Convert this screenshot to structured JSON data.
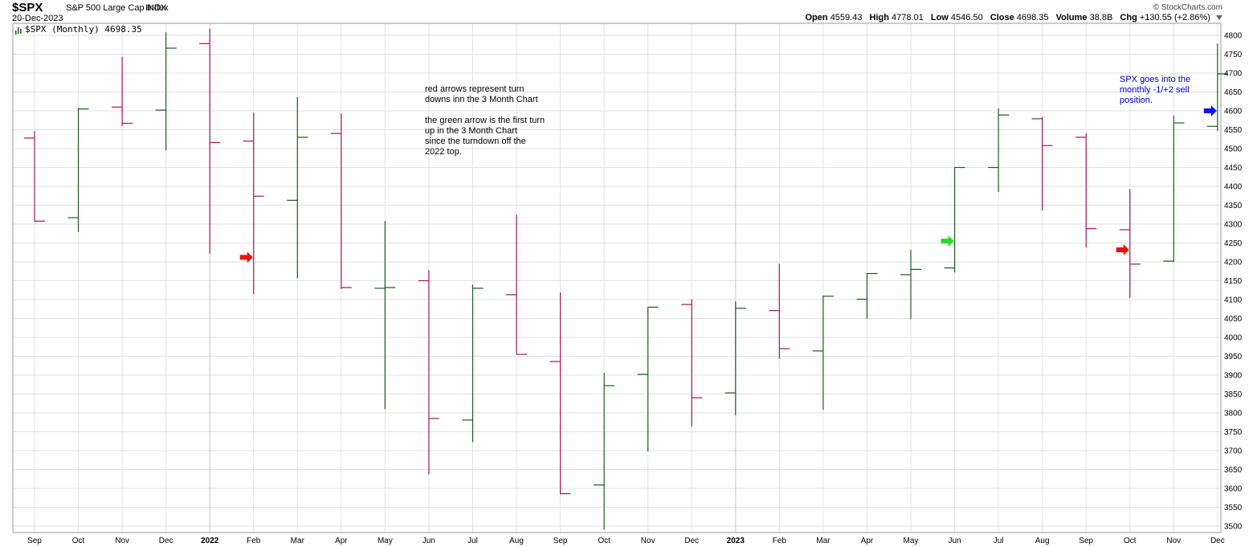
{
  "header": {
    "symbol": "$SPX",
    "name": "S&P 500 Large Cap Index",
    "exchange": "INDX",
    "date": "20-Dec-2023",
    "brand": "© StockCharts.com",
    "open_label": "Open",
    "open": "4559.43",
    "high_label": "High",
    "high": "4778.01",
    "low_label": "Low",
    "low": "4546.50",
    "close_label": "Close",
    "close": "4698.35",
    "volume_label": "Volume",
    "volume": "38.8B",
    "chg_label": "Chg",
    "chg": "+130.55 (+2.86%)"
  },
  "legend": "$SPX (Monthly) 4698.35",
  "annotations": {
    "red_green_note": "red arrows represent turn\ndowns inn the 3 Month Chart\n\nthe green arrow is the first turn\nup in the 3 Month Chart\nsince the turndown off the\n2022 top.",
    "blue_note": "SPX goes into the\nmonthly -1/+2 sell\nposition."
  },
  "colors": {
    "up": "#1a5e1a",
    "down": "#a3155a",
    "grid": "#e2e2e2",
    "red_arrow": "#ee1111",
    "green_arrow": "#22dd22",
    "blue_arrow": "#1111ee"
  },
  "chart_data": {
    "type": "ohlc",
    "title": "$SPX (Monthly) 4698.35",
    "ylim": [
      3480,
      4830
    ],
    "yticks": [
      3500,
      3550,
      3600,
      3650,
      3700,
      3750,
      3800,
      3850,
      3900,
      3950,
      4000,
      4050,
      4100,
      4150,
      4200,
      4250,
      4300,
      4350,
      4400,
      4450,
      4500,
      4550,
      4600,
      4650,
      4700,
      4750,
      4800
    ],
    "x_labels": [
      "Sep",
      "Oct",
      "Nov",
      "Dec",
      "2022",
      "Feb",
      "Mar",
      "Apr",
      "May",
      "Jun",
      "Jul",
      "Aug",
      "Sep",
      "Oct",
      "Nov",
      "Dec",
      "2023",
      "Feb",
      "Mar",
      "Apr",
      "May",
      "Jun",
      "Jul",
      "Aug",
      "Sep",
      "Oct",
      "Nov",
      "Dec"
    ],
    "bold_labels": [
      "2022",
      "2023"
    ],
    "bars": [
      {
        "o": 4528,
        "h": 4546,
        "l": 4306,
        "c": 4308
      },
      {
        "o": 4317,
        "h": 4608,
        "l": 4279,
        "c": 4605
      },
      {
        "o": 4610,
        "h": 4743,
        "l": 4560,
        "c": 4567
      },
      {
        "o": 4602,
        "h": 4808,
        "l": 4495,
        "c": 4766
      },
      {
        "o": 4778,
        "h": 4818,
        "l": 4222,
        "c": 4516
      },
      {
        "o": 4520,
        "h": 4595,
        "l": 4115,
        "c": 4374
      },
      {
        "o": 4363,
        "h": 4637,
        "l": 4157,
        "c": 4530
      },
      {
        "o": 4540,
        "h": 4593,
        "l": 4128,
        "c": 4132
      },
      {
        "o": 4130,
        "h": 4308,
        "l": 3810,
        "c": 4132
      },
      {
        "o": 4150,
        "h": 4178,
        "l": 3637,
        "c": 3785
      },
      {
        "o": 3781,
        "h": 4140,
        "l": 3722,
        "c": 4130
      },
      {
        "o": 4113,
        "h": 4325,
        "l": 3955,
        "c": 3955
      },
      {
        "o": 3936,
        "h": 4119,
        "l": 3584,
        "c": 3586
      },
      {
        "o": 3609,
        "h": 3906,
        "l": 3491,
        "c": 3872
      },
      {
        "o": 3902,
        "h": 4080,
        "l": 3698,
        "c": 4080
      },
      {
        "o": 4087,
        "h": 4101,
        "l": 3764,
        "c": 3840
      },
      {
        "o": 3853,
        "h": 4095,
        "l": 3794,
        "c": 4077
      },
      {
        "o": 4071,
        "h": 4195,
        "l": 3943,
        "c": 3970
      },
      {
        "o": 3964,
        "h": 4110,
        "l": 3808,
        "c": 4109
      },
      {
        "o": 4101,
        "h": 4170,
        "l": 4049,
        "c": 4169
      },
      {
        "o": 4166,
        "h": 4232,
        "l": 4048,
        "c": 4180
      },
      {
        "o": 4184,
        "h": 4450,
        "l": 4172,
        "c": 4450
      },
      {
        "o": 4450,
        "h": 4607,
        "l": 4385,
        "c": 4589
      },
      {
        "o": 4579,
        "h": 4584,
        "l": 4336,
        "c": 4508
      },
      {
        "o": 4530,
        "h": 4541,
        "l": 4238,
        "c": 4288
      },
      {
        "o": 4285,
        "h": 4393,
        "l": 4104,
        "c": 4194
      },
      {
        "o": 4202,
        "h": 4588,
        "l": 4200,
        "c": 4568
      },
      {
        "o": 4559,
        "h": 4778,
        "l": 4547,
        "c": 4698
      }
    ],
    "arrows": [
      {
        "bar": 5,
        "price": 4212,
        "color": "red"
      },
      {
        "bar": 21,
        "price": 4255,
        "color": "green"
      },
      {
        "bar": 25,
        "price": 4232,
        "color": "red"
      },
      {
        "bar": 27,
        "price": 4600,
        "color": "blue"
      }
    ]
  }
}
